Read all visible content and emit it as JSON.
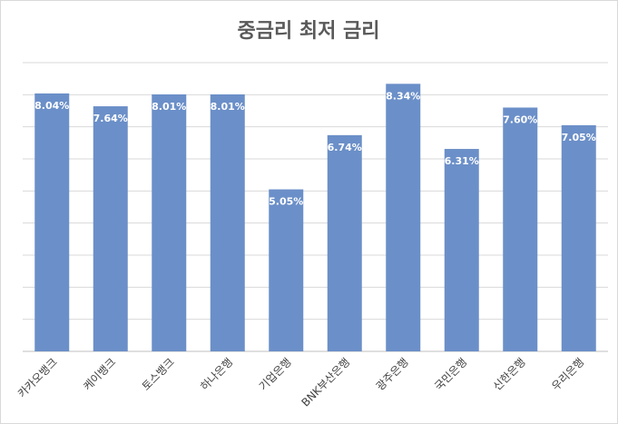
{
  "chart_data": {
    "type": "bar",
    "title": "중금리 최저 금리",
    "categories": [
      "카카오뱅크",
      "케이뱅크",
      "토스뱅크",
      "하나은행",
      "기업은행",
      "BNK부산은행",
      "광주은행",
      "국민은행",
      "신한은행",
      "우리은행"
    ],
    "values": [
      8.04,
      7.64,
      8.01,
      8.01,
      5.05,
      6.74,
      8.34,
      6.31,
      7.6,
      7.05
    ],
    "value_labels": [
      "8.04%",
      "7.64%",
      "8.01%",
      "8.01%",
      "5.05%",
      "6.74%",
      "8.34%",
      "6.31%",
      "7.60%",
      "7.05%"
    ],
    "color": "#6b8fc8",
    "ylim": [
      0,
      9
    ],
    "yticks": [
      0,
      1,
      2,
      3,
      4,
      5,
      6,
      7,
      8,
      9
    ],
    "grid": true
  }
}
